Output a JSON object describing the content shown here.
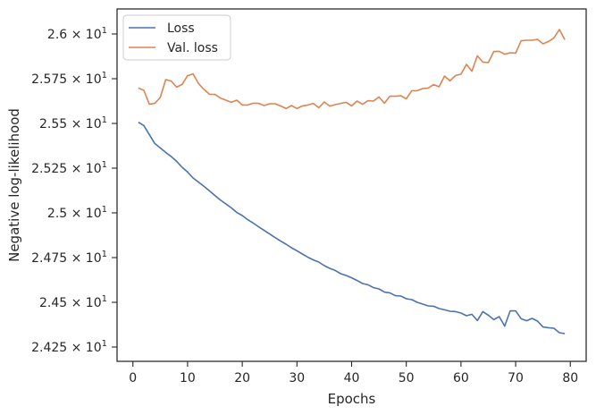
{
  "chart_data": {
    "type": "line",
    "title": "",
    "xlabel": "Epochs",
    "ylabel": "Negative log-likelihood",
    "xlim": [
      -2.9,
      82.9
    ],
    "ylim": [
      24.17,
      26.14
    ],
    "xticks": [
      0,
      10,
      20,
      30,
      40,
      50,
      60,
      70,
      80
    ],
    "xtick_labels": [
      "0",
      "10",
      "20",
      "30",
      "40",
      "50",
      "60",
      "70",
      "80"
    ],
    "yticks": [
      24.25,
      24.5,
      24.75,
      25.0,
      25.25,
      25.5,
      25.75,
      26.0
    ],
    "ytick_labels": [
      {
        "mantissa": "2.425",
        "power": "1"
      },
      {
        "mantissa": "2.45",
        "power": "1"
      },
      {
        "mantissa": "2.475",
        "power": "1"
      },
      {
        "mantissa": "2.5",
        "power": "1"
      },
      {
        "mantissa": "2.525",
        "power": "1"
      },
      {
        "mantissa": "2.55",
        "power": "1"
      },
      {
        "mantissa": "2.575",
        "power": "1"
      },
      {
        "mantissa": "2.6",
        "power": "1"
      }
    ],
    "grid": false,
    "legend_position": "top-left",
    "x": [
      1,
      2,
      3,
      4,
      5,
      6,
      7,
      8,
      9,
      10,
      11,
      12,
      13,
      14,
      15,
      16,
      17,
      18,
      19,
      20,
      21,
      22,
      23,
      24,
      25,
      26,
      27,
      28,
      29,
      30,
      31,
      32,
      33,
      34,
      35,
      36,
      37,
      38,
      39,
      40,
      41,
      42,
      43,
      44,
      45,
      46,
      47,
      48,
      49,
      50,
      51,
      52,
      53,
      54,
      55,
      56,
      57,
      58,
      59,
      60,
      61,
      62,
      63,
      64,
      65,
      66,
      67,
      68,
      69,
      70,
      71,
      72,
      73,
      74,
      75,
      76,
      77,
      78,
      79
    ],
    "series": [
      {
        "name": "Loss",
        "color": "#4c72b0",
        "values": [
          25.507,
          25.488,
          25.438,
          25.388,
          25.363,
          25.338,
          25.315,
          25.288,
          25.255,
          25.228,
          25.195,
          25.172,
          25.148,
          25.123,
          25.097,
          25.072,
          25.05,
          25.028,
          25.002,
          24.985,
          24.962,
          24.943,
          24.922,
          24.902,
          24.882,
          24.862,
          24.843,
          24.825,
          24.805,
          24.788,
          24.77,
          24.752,
          24.737,
          24.725,
          24.705,
          24.69,
          24.678,
          24.66,
          24.65,
          24.637,
          24.622,
          24.605,
          24.598,
          24.582,
          24.575,
          24.557,
          24.553,
          24.537,
          24.535,
          24.52,
          24.515,
          24.5,
          24.49,
          24.48,
          24.478,
          24.465,
          24.458,
          24.45,
          24.448,
          24.44,
          24.425,
          24.433,
          24.398,
          24.448,
          24.428,
          24.403,
          24.42,
          24.367,
          24.452,
          24.452,
          24.408,
          24.397,
          24.41,
          24.395,
          24.362,
          24.358,
          24.355,
          24.33,
          24.325
        ]
      },
      {
        "name": "Val. loss",
        "color": "#dd8452",
        "values": [
          25.698,
          25.685,
          25.608,
          25.612,
          25.645,
          25.745,
          25.737,
          25.703,
          25.718,
          25.767,
          25.777,
          25.723,
          25.69,
          25.663,
          25.662,
          25.642,
          25.63,
          25.618,
          25.63,
          25.603,
          25.603,
          25.613,
          25.612,
          25.6,
          25.61,
          25.61,
          25.598,
          25.583,
          25.6,
          25.583,
          25.598,
          25.603,
          25.612,
          25.588,
          25.62,
          25.597,
          25.605,
          25.612,
          25.618,
          25.598,
          25.625,
          25.607,
          25.627,
          25.625,
          25.648,
          25.613,
          25.652,
          25.652,
          25.655,
          25.638,
          25.683,
          25.683,
          25.695,
          25.697,
          25.717,
          25.705,
          25.765,
          25.738,
          25.768,
          25.775,
          25.83,
          25.792,
          25.878,
          25.843,
          25.84,
          25.902,
          25.903,
          25.887,
          25.895,
          25.893,
          25.962,
          25.965,
          25.965,
          25.97,
          25.945,
          25.958,
          25.978,
          26.025,
          25.968
        ]
      }
    ]
  }
}
